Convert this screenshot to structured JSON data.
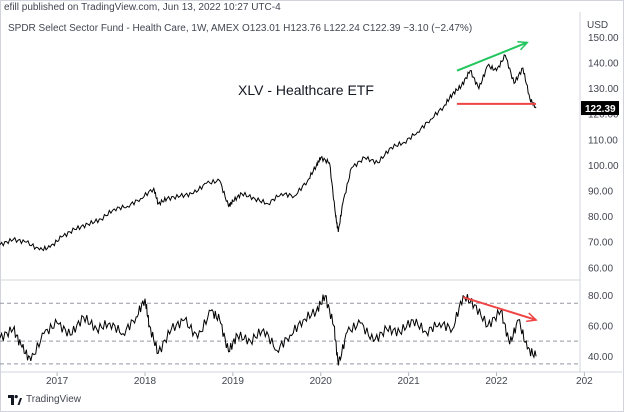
{
  "header": {
    "published": "efill published on TradingView.com, Jun 13, 2022 10:27 UTC-4",
    "legend": "SPDR Select Sector Fund - Health Care, 1W, AMEX  O123.01  H123.76  L122.24  C122.39  −3.10 (−2.47%)",
    "currency": "USD"
  },
  "footer": {
    "brand": "TradingView",
    "icon": "tradingview-logo-icon"
  },
  "colors": {
    "price": "#000000",
    "green_trend": "#22c55e",
    "red_trend": "#ef4444",
    "last_label_bg": "#000000",
    "grid_dash": "#9598a1",
    "axis_text": "#434651"
  },
  "chart_data": [
    {
      "type": "line",
      "title": "XLV - Healthcare ETF",
      "ylabel": "",
      "price_axis_ticks": [
        "60.00",
        "70.00",
        "80.00",
        "90.00",
        "100.00",
        "110.00",
        "120.00",
        "130.00",
        "140.00",
        "150.00"
      ],
      "ylim": [
        56,
        156
      ],
      "x_ticks": [
        "2017",
        "2018",
        "2019",
        "2020",
        "2021",
        "2022",
        "202"
      ],
      "last_price_label": "122.39",
      "series": [
        {
          "x": [
            2016.35,
            2016.5,
            2016.65,
            2016.8,
            2016.92,
            2017.05,
            2017.2,
            2017.35,
            2017.5,
            2017.65,
            2017.8,
            2017.95,
            2018.1,
            2018.15,
            2018.25,
            2018.4,
            2018.55,
            2018.7,
            2018.85,
            2018.95,
            2019.0,
            2019.1,
            2019.25,
            2019.4,
            2019.55,
            2019.7,
            2019.85,
            2019.95,
            2020.0,
            2020.1,
            2020.17,
            2020.2,
            2020.25,
            2020.35,
            2020.5,
            2020.65,
            2020.8,
            2020.95,
            2021.1,
            2021.25,
            2021.4,
            2021.5,
            2021.6,
            2021.7,
            2021.8,
            2021.9,
            2022.0,
            2022.1,
            2022.2,
            2022.3,
            2022.38,
            2022.45
          ],
          "values": [
            69,
            71,
            70,
            67,
            68,
            72,
            75,
            77,
            79,
            83,
            84,
            87,
            91,
            85,
            87,
            88,
            89,
            93,
            94,
            84,
            86,
            89,
            87,
            85,
            89,
            88,
            94,
            100,
            103,
            101,
            80,
            74,
            85,
            99,
            103,
            101,
            107,
            109,
            113,
            118,
            123,
            128,
            131,
            137,
            130,
            139,
            137,
            143,
            132,
            138,
            126,
            122.4
          ]
        }
      ],
      "annotations": [
        {
          "type": "trend-line",
          "color": "green",
          "from": [
            2021.55,
            137
          ],
          "to": [
            2022.35,
            148
          ],
          "arrow": true
        },
        {
          "type": "support-line",
          "color": "red",
          "from": [
            2021.55,
            124
          ],
          "to": [
            2022.45,
            124
          ],
          "arrow": false
        }
      ]
    },
    {
      "type": "line",
      "title": "",
      "price_axis_ticks": [
        "40.00",
        "60.00",
        "80.00"
      ],
      "ylim": [
        31,
        89
      ],
      "reference_lines": [
        75,
        50,
        35
      ],
      "series": [
        {
          "x": [
            2016.35,
            2016.5,
            2016.6,
            2016.7,
            2016.85,
            2017.0,
            2017.15,
            2017.3,
            2017.45,
            2017.6,
            2017.75,
            2017.9,
            2018.0,
            2018.05,
            2018.15,
            2018.3,
            2018.45,
            2018.6,
            2018.75,
            2018.85,
            2018.95,
            2019.05,
            2019.2,
            2019.35,
            2019.5,
            2019.65,
            2019.8,
            2019.95,
            2020.05,
            2020.15,
            2020.2,
            2020.3,
            2020.45,
            2020.6,
            2020.75,
            2020.9,
            2021.05,
            2021.2,
            2021.35,
            2021.5,
            2021.62,
            2021.75,
            2021.9,
            2022.05,
            2022.15,
            2022.25,
            2022.35,
            2022.45
          ],
          "values": [
            52,
            58,
            46,
            37,
            55,
            62,
            54,
            66,
            58,
            62,
            55,
            66,
            78,
            60,
            42,
            58,
            64,
            52,
            70,
            64,
            43,
            54,
            50,
            58,
            44,
            54,
            64,
            70,
            80,
            60,
            34,
            56,
            62,
            50,
            58,
            56,
            64,
            56,
            62,
            58,
            80,
            74,
            60,
            70,
            48,
            64,
            45,
            40
          ]
        }
      ],
      "annotations": [
        {
          "type": "trend-line",
          "color": "red",
          "from": [
            2021.62,
            79
          ],
          "to": [
            2022.45,
            64
          ],
          "arrow": true
        }
      ]
    }
  ]
}
